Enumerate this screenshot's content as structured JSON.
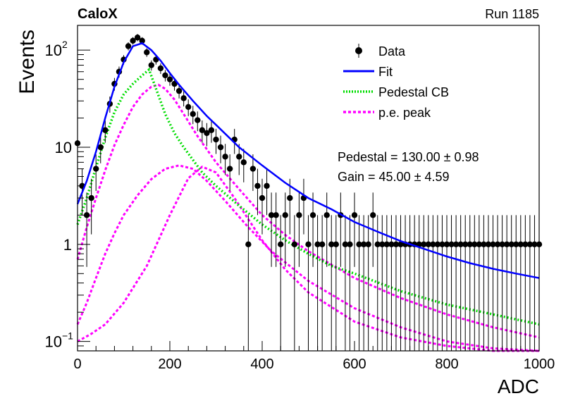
{
  "chart_data": {
    "type": "scatter",
    "experiment": "CaloX",
    "run": "Run 1185",
    "xlabel": "ADC",
    "ylabel": "Events",
    "xlim": [
      0,
      1000
    ],
    "ylim": [
      0.08,
      180
    ],
    "yscale": "log",
    "grid": false,
    "legend_position": "top-right",
    "x_ticks": [
      {
        "value": 0,
        "label": "0"
      },
      {
        "value": 200,
        "label": "200"
      },
      {
        "value": 400,
        "label": "400"
      },
      {
        "value": 600,
        "label": "600"
      },
      {
        "value": 800,
        "label": "800"
      },
      {
        "value": 1000,
        "label": "1000"
      }
    ],
    "y_ticks": [
      {
        "value": 0.1,
        "base": "10",
        "exp": "−1"
      },
      {
        "value": 1,
        "base": "1",
        "exp": ""
      },
      {
        "value": 10,
        "base": "10",
        "exp": ""
      },
      {
        "value": 100,
        "base": "10",
        "exp": "2"
      }
    ],
    "legend": [
      {
        "label": "Data",
        "style": "marker",
        "color": "#000000"
      },
      {
        "label": "Fit",
        "style": "solid",
        "color": "#0000ff"
      },
      {
        "label": "Pedestal CB",
        "style": "dotted",
        "color": "#00dd00"
      },
      {
        "label": "p.e. peak",
        "style": "dashed",
        "color": "#ff00ff"
      }
    ],
    "annotations": [
      {
        "label": "Pedestal = 130.00",
        "error": "0.98",
        "pm": "±"
      },
      {
        "label": "Gain = 45.00",
        "error": "4.59",
        "pm": "±"
      }
    ],
    "data_series": {
      "name": "Data",
      "color": "#000000",
      "x": [
        0,
        10,
        20,
        30,
        40,
        50,
        60,
        70,
        80,
        90,
        100,
        110,
        120,
        130,
        140,
        150,
        160,
        170,
        180,
        190,
        200,
        210,
        220,
        230,
        240,
        250,
        260,
        270,
        280,
        290,
        300,
        310,
        320,
        330,
        340,
        350,
        360,
        370,
        380,
        390,
        400,
        410,
        420,
        430,
        440,
        450,
        460,
        470,
        480,
        490,
        500,
        510,
        520,
        530,
        540,
        550,
        560,
        570,
        580,
        590,
        600,
        610,
        620,
        630,
        640,
        650,
        660,
        670,
        680,
        690,
        700,
        710,
        720,
        730,
        740,
        750,
        760,
        770,
        780,
        790,
        800,
        810,
        820,
        830,
        840,
        850,
        860,
        870,
        880,
        890,
        900,
        910,
        920,
        930,
        940,
        950,
        960,
        970,
        980,
        990,
        1000
      ],
      "y": [
        11,
        4,
        2,
        3,
        6,
        10,
        15,
        28,
        45,
        60,
        80,
        110,
        125,
        135,
        125,
        95,
        70,
        80,
        65,
        55,
        50,
        45,
        38,
        32,
        26,
        22,
        19,
        15,
        14,
        15,
        12,
        10,
        8,
        6,
        12,
        8,
        7,
        1,
        6,
        4,
        3,
        4,
        2,
        2,
        1,
        2,
        3,
        1,
        2,
        3,
        1,
        2,
        1,
        1,
        2,
        1,
        1,
        2,
        1,
        1,
        2,
        1,
        1,
        1,
        2,
        1,
        1,
        1,
        1,
        1,
        1,
        1,
        1,
        1,
        1,
        1,
        1,
        1,
        1,
        1,
        1,
        1,
        1,
        1,
        1,
        1,
        1,
        1,
        1,
        1,
        1,
        1,
        1,
        1,
        1,
        1,
        1,
        1,
        1,
        1,
        1
      ]
    },
    "fit_series": {
      "name": "Fit",
      "color": "#0000ff",
      "x": [
        0,
        20,
        40,
        60,
        80,
        100,
        120,
        140,
        160,
        180,
        200,
        220,
        250,
        280,
        300,
        350,
        400,
        450,
        500,
        550,
        600,
        650,
        700,
        750,
        800,
        850,
        900,
        950,
        1000
      ],
      "y": [
        2.6,
        4.5,
        9,
        20,
        42,
        75,
        110,
        118,
        100,
        78,
        58,
        44,
        30,
        21,
        17,
        10,
        6.5,
        4.3,
        3.0,
        2.3,
        1.7,
        1.35,
        1.08,
        0.9,
        0.75,
        0.64,
        0.56,
        0.5,
        0.45
      ]
    },
    "pedestal_series": {
      "name": "Pedestal CB",
      "color": "#00dd00",
      "x": [
        0,
        20,
        40,
        60,
        80,
        100,
        120,
        140,
        155,
        170,
        190,
        210,
        230,
        250,
        270,
        300,
        350,
        400,
        450,
        500,
        550,
        600,
        700,
        800,
        900,
        1000
      ],
      "y": [
        1.6,
        3.0,
        6.2,
        12.5,
        23,
        35,
        45,
        55,
        63,
        40,
        22,
        14,
        10,
        7.4,
        5.5,
        4.0,
        2.5,
        1.6,
        1.1,
        0.8,
        0.6,
        0.5,
        0.33,
        0.24,
        0.19,
        0.15
      ]
    },
    "pe_series": [
      {
        "name": "p.e. peak",
        "color": "#ff00ff",
        "x": [
          0,
          20,
          40,
          60,
          80,
          100,
          120,
          140,
          160,
          175,
          190,
          210,
          230,
          260,
          300,
          350,
          400,
          450,
          500,
          600,
          700,
          800,
          900,
          1000
        ],
        "y": [
          0.7,
          1.5,
          3.0,
          5.8,
          10.5,
          17,
          26,
          35,
          42,
          44,
          40,
          31,
          22,
          13,
          7,
          3.7,
          2.0,
          1.25,
          0.85,
          0.45,
          0.28,
          0.19,
          0.14,
          0.11
        ]
      },
      {
        "name": "p.e. peak",
        "color": "#ff00ff",
        "x": [
          0,
          20,
          40,
          60,
          80,
          100,
          130,
          160,
          190,
          220,
          250,
          280,
          320,
          370,
          420,
          500,
          600,
          700,
          800,
          900,
          1000
        ],
        "y": [
          0.15,
          0.25,
          0.45,
          0.8,
          1.3,
          2.0,
          3.2,
          4.7,
          6.0,
          6.5,
          6.0,
          4.5,
          2.8,
          1.5,
          0.85,
          0.42,
          0.22,
          0.14,
          0.1,
          0.085,
          0.075
        ]
      },
      {
        "name": "p.e. peak",
        "color": "#ff00ff",
        "x": [
          0,
          30,
          60,
          100,
          150,
          200,
          240,
          270,
          300,
          340,
          400,
          450,
          500,
          600,
          700,
          800,
          900,
          1000
        ],
        "y": [
          0.1,
          0.12,
          0.15,
          0.25,
          0.6,
          2.0,
          4.8,
          6.3,
          5.5,
          3.0,
          1.1,
          0.55,
          0.32,
          0.16,
          0.11,
          0.09,
          0.08,
          0.075
        ]
      }
    ]
  }
}
